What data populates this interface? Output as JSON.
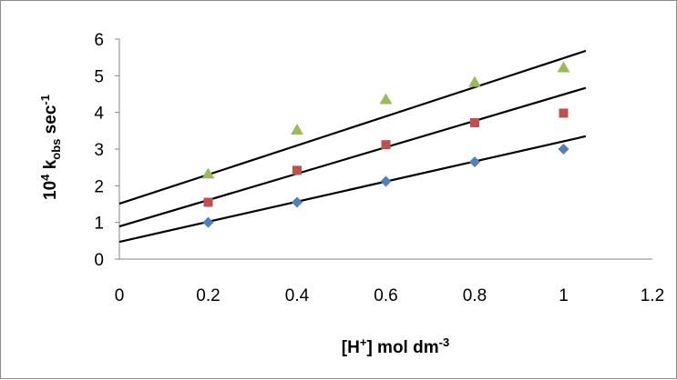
{
  "chart_data": {
    "type": "scatter",
    "title": "",
    "xlabel": {
      "base": "[H",
      "sup": "+",
      "rest": "] mol dm",
      "sup2": "-3"
    },
    "ylabel": {
      "pre": "10",
      "sup": "4",
      "mid": " k",
      "sub": "obs",
      "post": " sec",
      "sup2": "-1"
    },
    "xlim": [
      0,
      1.2
    ],
    "ylim": [
      0,
      6
    ],
    "x_ticks": [
      "0",
      "0.2",
      "0.4",
      "0.6",
      "0.8",
      "1",
      "1.2"
    ],
    "y_ticks": [
      "0",
      "1",
      "2",
      "3",
      "4",
      "5",
      "6"
    ],
    "grid": false,
    "legend": "none",
    "series": [
      {
        "marker": "diamond",
        "color": "#4f81bd",
        "x": [
          0.2,
          0.4,
          0.6,
          0.8,
          1.0
        ],
        "y": [
          1.0,
          1.55,
          2.12,
          2.65,
          3.0
        ],
        "trend": {
          "x": [
            0,
            1.05
          ],
          "y": [
            0.47,
            3.35
          ]
        }
      },
      {
        "marker": "square",
        "color": "#c0504d",
        "x": [
          0.2,
          0.4,
          0.6,
          0.8,
          1.0
        ],
        "y": [
          1.55,
          2.42,
          3.12,
          3.72,
          3.98
        ],
        "trend": {
          "x": [
            0,
            1.05
          ],
          "y": [
            0.89,
            4.67
          ]
        }
      },
      {
        "marker": "triangle",
        "color": "#9bbb59",
        "x": [
          0.2,
          0.4,
          0.6,
          0.8,
          1.0
        ],
        "y": [
          2.32,
          3.52,
          4.35,
          4.82,
          5.22
        ],
        "trend": {
          "x": [
            0,
            1.05
          ],
          "y": [
            1.51,
            5.68
          ]
        }
      }
    ]
  }
}
